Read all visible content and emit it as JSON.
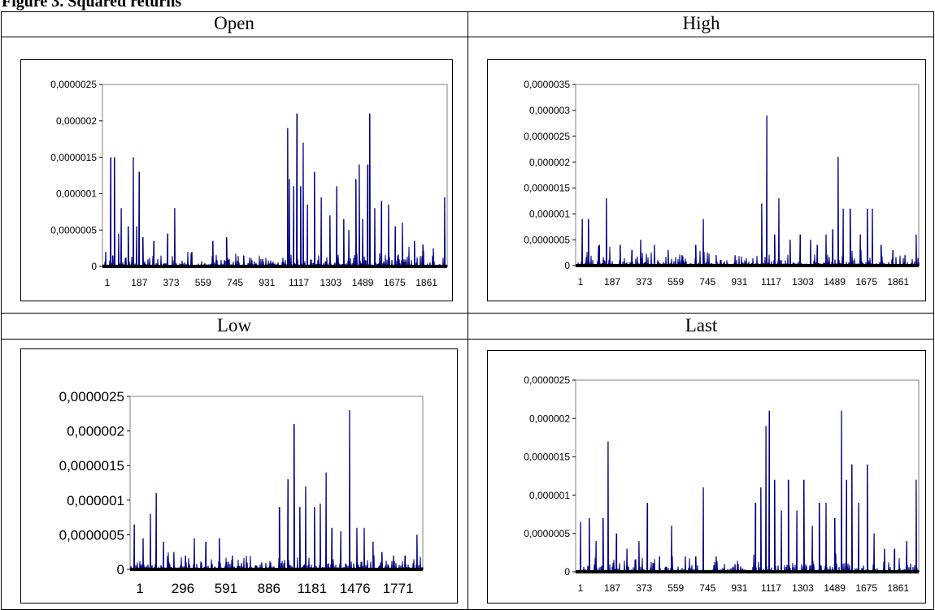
{
  "caption": "Figure 3. Squared returns",
  "headers": [
    "Open",
    "High",
    "Low",
    "Last"
  ],
  "colors": {
    "series": "#000080",
    "frame": "#000000",
    "plot_border": "#808080"
  },
  "chart_data": [
    {
      "type": "line",
      "title": "Open",
      "x_ticks": [
        "1",
        "187",
        "373",
        "559",
        "745",
        "931",
        "1117",
        "1303",
        "1489",
        "1675",
        "1861"
      ],
      "y_ticks": [
        "0",
        "0,0000005",
        "0,000001",
        "0,0000015",
        "0,000002",
        "0,0000025"
      ],
      "ylim": [
        0,
        2.5e-06
      ],
      "xlim": [
        1,
        2000
      ],
      "grid": false,
      "series": [
        {
          "values": [
            [
              1,
              0
            ],
            [
              20,
              2e-07
            ],
            [
              50,
              1.5e-06
            ],
            [
              60,
              1.5e-07
            ],
            [
              70,
              1.5e-06
            ],
            [
              95,
              4.5e-07
            ],
            [
              110,
              8e-07
            ],
            [
              150,
              5.5e-07
            ],
            [
              180,
              1.5e-06
            ],
            [
              200,
              5.5e-07
            ],
            [
              215,
              1.3e-06
            ],
            [
              235,
              4e-07
            ],
            [
              300,
              3.5e-07
            ],
            [
              380,
              4.5e-07
            ],
            [
              420,
              8e-07
            ],
            [
              520,
              2e-07
            ],
            [
              640,
              3.5e-07
            ],
            [
              720,
              4e-07
            ],
            [
              820,
              1.5e-07
            ],
            [
              930,
              1e-07
            ],
            [
              1075,
              1.9e-06
            ],
            [
              1085,
              1.2e-06
            ],
            [
              1110,
              1.1e-06
            ],
            [
              1130,
              2.1e-06
            ],
            [
              1150,
              1.1e-06
            ],
            [
              1165,
              1.7e-06
            ],
            [
              1190,
              8.5e-07
            ],
            [
              1230,
              1.3e-06
            ],
            [
              1270,
              9.5e-07
            ],
            [
              1320,
              7e-07
            ],
            [
              1360,
              1.1e-06
            ],
            [
              1400,
              6.5e-07
            ],
            [
              1430,
              5e-07
            ],
            [
              1470,
              1.2e-06
            ],
            [
              1490,
              1.4e-06
            ],
            [
              1510,
              6.5e-07
            ],
            [
              1540,
              1.4e-06
            ],
            [
              1550,
              2.1e-06
            ],
            [
              1580,
              8e-07
            ],
            [
              1620,
              9e-07
            ],
            [
              1660,
              8.5e-07
            ],
            [
              1700,
              5.5e-07
            ],
            [
              1740,
              6e-07
            ],
            [
              1810,
              3.5e-07
            ],
            [
              1860,
              3e-07
            ],
            [
              1920,
              2.5e-07
            ],
            [
              1985,
              9.5e-07
            ]
          ]
        }
      ]
    },
    {
      "type": "line",
      "title": "High",
      "x_ticks": [
        "1",
        "187",
        "373",
        "559",
        "745",
        "931",
        "1117",
        "1303",
        "1489",
        "1675",
        "1861"
      ],
      "y_ticks": [
        "0",
        "0,0000005",
        "0,000001",
        "0,0000015",
        "0,000002",
        "0,0000025",
        "0,000003",
        "0,0000035"
      ],
      "ylim": [
        0,
        3.5e-06
      ],
      "xlim": [
        1,
        2000
      ],
      "grid": false,
      "series": [
        {
          "values": [
            [
              1,
              0
            ],
            [
              40,
              9e-07
            ],
            [
              75,
              9e-07
            ],
            [
              140,
              4e-07
            ],
            [
              180,
              1.3e-06
            ],
            [
              260,
              4e-07
            ],
            [
              330,
              3e-07
            ],
            [
              380,
              5e-07
            ],
            [
              460,
              4e-07
            ],
            [
              540,
              3e-07
            ],
            [
              620,
              2e-07
            ],
            [
              700,
              4e-07
            ],
            [
              745,
              9e-07
            ],
            [
              820,
              2e-07
            ],
            [
              930,
              2e-07
            ],
            [
              1085,
              1.2e-06
            ],
            [
              1115,
              2.9e-06
            ],
            [
              1160,
              6e-07
            ],
            [
              1185,
              1.3e-06
            ],
            [
              1250,
              5e-07
            ],
            [
              1310,
              6e-07
            ],
            [
              1370,
              5e-07
            ],
            [
              1410,
              4e-07
            ],
            [
              1460,
              6e-07
            ],
            [
              1500,
              7e-07
            ],
            [
              1530,
              2.1e-06
            ],
            [
              1560,
              1.1e-06
            ],
            [
              1600,
              1.1e-06
            ],
            [
              1660,
              6e-07
            ],
            [
              1700,
              1.1e-06
            ],
            [
              1730,
              1.1e-06
            ],
            [
              1780,
              4e-07
            ],
            [
              1850,
              3e-07
            ],
            [
              1920,
              2e-07
            ],
            [
              1985,
              6e-07
            ]
          ]
        }
      ]
    },
    {
      "type": "line",
      "title": "Low",
      "x_ticks": [
        "1",
        "296",
        "591",
        "886",
        "1181",
        "1476",
        "1771"
      ],
      "y_ticks": [
        "0",
        "0,0000005",
        "0,000001",
        "0,0000015",
        "0,000002",
        "0,0000025"
      ],
      "ylim": [
        0,
        2.5e-06
      ],
      "xlim": [
        1,
        2000
      ],
      "grid": false,
      "series": [
        {
          "values": [
            [
              1,
              0
            ],
            [
              30,
              6.5e-07
            ],
            [
              90,
              4.5e-07
            ],
            [
              140,
              8e-07
            ],
            [
              180,
              1.1e-06
            ],
            [
              230,
              4e-07
            ],
            [
              300,
              2.5e-07
            ],
            [
              380,
              2e-07
            ],
            [
              440,
              4.5e-07
            ],
            [
              520,
              4e-07
            ],
            [
              610,
              4.5e-07
            ],
            [
              700,
              2e-07
            ],
            [
              800,
              1e-07
            ],
            [
              900,
              1e-07
            ],
            [
              960,
              1e-07
            ],
            [
              1020,
              9e-07
            ],
            [
              1080,
              1.3e-06
            ],
            [
              1120,
              2.1e-06
            ],
            [
              1160,
              9e-07
            ],
            [
              1200,
              1.2e-06
            ],
            [
              1260,
              9e-07
            ],
            [
              1300,
              9.5e-07
            ],
            [
              1340,
              1.4e-06
            ],
            [
              1380,
              6e-07
            ],
            [
              1440,
              5.5e-07
            ],
            [
              1500,
              2.3e-06
            ],
            [
              1550,
              6e-07
            ],
            [
              1600,
              6e-07
            ],
            [
              1660,
              4e-07
            ],
            [
              1720,
              2.5e-07
            ],
            [
              1800,
              2e-07
            ],
            [
              1880,
              2e-07
            ],
            [
              1960,
              5e-07
            ]
          ]
        }
      ]
    },
    {
      "type": "line",
      "title": "Last",
      "x_ticks": [
        "1",
        "187",
        "373",
        "559",
        "745",
        "931",
        "1117",
        "1303",
        "1489",
        "1675",
        "1861"
      ],
      "y_ticks": [
        "0",
        "0,0000005",
        "0,000001",
        "0,0000015",
        "0,000002",
        "0,0000025"
      ],
      "ylim": [
        0,
        2.5e-06
      ],
      "xlim": [
        1,
        2000
      ],
      "grid": false,
      "series": [
        {
          "values": [
            [
              1,
              0
            ],
            [
              30,
              6.5e-07
            ],
            [
              80,
              7e-07
            ],
            [
              120,
              4e-07
            ],
            [
              160,
              7e-07
            ],
            [
              190,
              1.7e-06
            ],
            [
              240,
              5e-07
            ],
            [
              300,
              3e-07
            ],
            [
              370,
              4e-07
            ],
            [
              420,
              9e-07
            ],
            [
              490,
              2e-07
            ],
            [
              560,
              6e-07
            ],
            [
              640,
              2e-07
            ],
            [
              700,
              2e-07
            ],
            [
              745,
              1.1e-06
            ],
            [
              820,
              2e-07
            ],
            [
              930,
              1e-07
            ],
            [
              1050,
              9e-07
            ],
            [
              1080,
              1.1e-06
            ],
            [
              1110,
              1.9e-06
            ],
            [
              1130,
              2.1e-06
            ],
            [
              1160,
              1.2e-06
            ],
            [
              1200,
              8e-07
            ],
            [
              1240,
              1.2e-06
            ],
            [
              1290,
              8e-07
            ],
            [
              1330,
              1.2e-06
            ],
            [
              1380,
              6e-07
            ],
            [
              1420,
              9e-07
            ],
            [
              1460,
              9e-07
            ],
            [
              1510,
              7e-07
            ],
            [
              1550,
              2.1e-06
            ],
            [
              1580,
              1.2e-06
            ],
            [
              1610,
              1.4e-06
            ],
            [
              1650,
              9e-07
            ],
            [
              1700,
              1.4e-06
            ],
            [
              1740,
              5e-07
            ],
            [
              1800,
              3e-07
            ],
            [
              1860,
              3e-07
            ],
            [
              1930,
              4e-07
            ],
            [
              1985,
              1.2e-06
            ]
          ]
        }
      ]
    }
  ]
}
